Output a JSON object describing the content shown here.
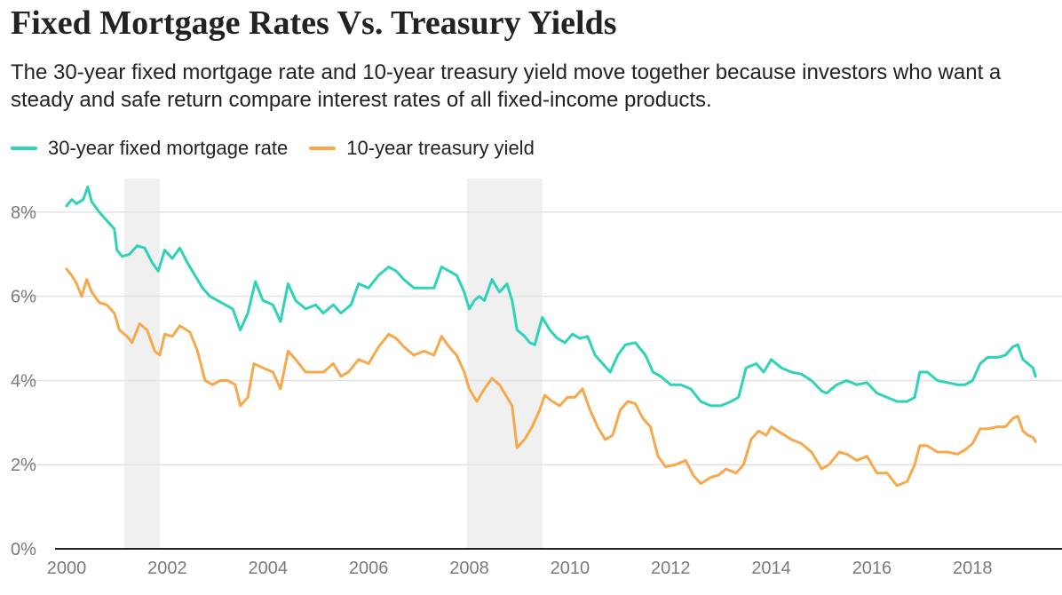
{
  "header": {
    "title": "Fixed Mortgage Rates Vs. Treasury Yields",
    "subtitle": "The 30-year fixed mortgage rate and 10-year treasury yield move together because investors who want a steady and safe return compare interest rates of all fixed-income products."
  },
  "legend": {
    "items": [
      {
        "label": "30-year fixed mortgage rate",
        "color": "#2ed3b7"
      },
      {
        "label": "10-year treasury yield",
        "color": "#f6a84b"
      }
    ]
  },
  "chart_data": {
    "type": "line",
    "title": "Fixed Mortgage Rates Vs. Treasury Yields",
    "xlabel": "",
    "ylabel": "",
    "xlim": [
      2000.0,
      2019.6
    ],
    "ylim": [
      0,
      8.8
    ],
    "x_ticks": [
      2000,
      2002,
      2004,
      2006,
      2008,
      2010,
      2012,
      2014,
      2016,
      2018
    ],
    "y_ticks": [
      0,
      2,
      4,
      6,
      8
    ],
    "y_tick_labels": [
      "0%",
      "2%",
      "4%",
      "6%",
      "8%"
    ],
    "grid": true,
    "legend_position": "top-left",
    "shaded_periods": [
      {
        "start": 2001.15,
        "end": 2001.85
      },
      {
        "start": 2007.95,
        "end": 2009.45
      }
    ],
    "series": [
      {
        "name": "30-year fixed mortgage rate",
        "color": "#2ed3b7",
        "points": [
          [
            2000.0,
            8.15
          ],
          [
            2000.1,
            8.3
          ],
          [
            2000.2,
            8.2
          ],
          [
            2000.33,
            8.3
          ],
          [
            2000.42,
            8.6
          ],
          [
            2000.5,
            8.25
          ],
          [
            2000.65,
            8.0
          ],
          [
            2000.8,
            7.8
          ],
          [
            2000.95,
            7.6
          ],
          [
            2001.0,
            7.1
          ],
          [
            2001.1,
            6.95
          ],
          [
            2001.25,
            7.0
          ],
          [
            2001.4,
            7.2
          ],
          [
            2001.55,
            7.15
          ],
          [
            2001.7,
            6.8
          ],
          [
            2001.82,
            6.6
          ],
          [
            2001.95,
            7.1
          ],
          [
            2002.1,
            6.9
          ],
          [
            2002.25,
            7.15
          ],
          [
            2002.4,
            6.8
          ],
          [
            2002.55,
            6.5
          ],
          [
            2002.7,
            6.2
          ],
          [
            2002.85,
            6.0
          ],
          [
            2003.0,
            5.9
          ],
          [
            2003.15,
            5.8
          ],
          [
            2003.3,
            5.7
          ],
          [
            2003.45,
            5.2
          ],
          [
            2003.6,
            5.6
          ],
          [
            2003.75,
            6.35
          ],
          [
            2003.9,
            5.9
          ],
          [
            2004.1,
            5.8
          ],
          [
            2004.25,
            5.4
          ],
          [
            2004.4,
            6.3
          ],
          [
            2004.55,
            5.9
          ],
          [
            2004.75,
            5.7
          ],
          [
            2004.95,
            5.8
          ],
          [
            2005.1,
            5.6
          ],
          [
            2005.3,
            5.8
          ],
          [
            2005.45,
            5.6
          ],
          [
            2005.65,
            5.8
          ],
          [
            2005.8,
            6.3
          ],
          [
            2006.0,
            6.2
          ],
          [
            2006.2,
            6.5
          ],
          [
            2006.4,
            6.7
          ],
          [
            2006.55,
            6.6
          ],
          [
            2006.7,
            6.4
          ],
          [
            2006.9,
            6.2
          ],
          [
            2007.1,
            6.2
          ],
          [
            2007.3,
            6.2
          ],
          [
            2007.45,
            6.7
          ],
          [
            2007.6,
            6.6
          ],
          [
            2007.75,
            6.5
          ],
          [
            2007.9,
            6.1
          ],
          [
            2008.0,
            5.7
          ],
          [
            2008.1,
            5.9
          ],
          [
            2008.2,
            6.0
          ],
          [
            2008.3,
            5.9
          ],
          [
            2008.45,
            6.4
          ],
          [
            2008.6,
            6.1
          ],
          [
            2008.75,
            6.3
          ],
          [
            2008.85,
            5.9
          ],
          [
            2008.95,
            5.2
          ],
          [
            2009.1,
            5.05
          ],
          [
            2009.2,
            4.9
          ],
          [
            2009.3,
            4.85
          ],
          [
            2009.45,
            5.5
          ],
          [
            2009.6,
            5.2
          ],
          [
            2009.75,
            5.0
          ],
          [
            2009.9,
            4.9
          ],
          [
            2010.05,
            5.1
          ],
          [
            2010.2,
            5.0
          ],
          [
            2010.35,
            5.05
          ],
          [
            2010.5,
            4.6
          ],
          [
            2010.65,
            4.4
          ],
          [
            2010.8,
            4.2
          ],
          [
            2010.95,
            4.6
          ],
          [
            2011.1,
            4.85
          ],
          [
            2011.3,
            4.9
          ],
          [
            2011.5,
            4.6
          ],
          [
            2011.65,
            4.2
          ],
          [
            2011.8,
            4.1
          ],
          [
            2012.0,
            3.9
          ],
          [
            2012.2,
            3.9
          ],
          [
            2012.4,
            3.8
          ],
          [
            2012.6,
            3.5
          ],
          [
            2012.8,
            3.4
          ],
          [
            2013.0,
            3.4
          ],
          [
            2013.2,
            3.5
          ],
          [
            2013.35,
            3.6
          ],
          [
            2013.5,
            4.3
          ],
          [
            2013.7,
            4.4
          ],
          [
            2013.85,
            4.2
          ],
          [
            2014.0,
            4.5
          ],
          [
            2014.2,
            4.3
          ],
          [
            2014.4,
            4.2
          ],
          [
            2014.6,
            4.15
          ],
          [
            2014.8,
            4.0
          ],
          [
            2015.0,
            3.75
          ],
          [
            2015.1,
            3.7
          ],
          [
            2015.3,
            3.9
          ],
          [
            2015.5,
            4.0
          ],
          [
            2015.7,
            3.9
          ],
          [
            2015.9,
            3.95
          ],
          [
            2016.1,
            3.7
          ],
          [
            2016.3,
            3.6
          ],
          [
            2016.5,
            3.5
          ],
          [
            2016.7,
            3.5
          ],
          [
            2016.85,
            3.6
          ],
          [
            2016.95,
            4.2
          ],
          [
            2017.1,
            4.2
          ],
          [
            2017.3,
            4.0
          ],
          [
            2017.5,
            3.95
          ],
          [
            2017.7,
            3.9
          ],
          [
            2017.85,
            3.9
          ],
          [
            2018.0,
            4.0
          ],
          [
            2018.15,
            4.4
          ],
          [
            2018.3,
            4.55
          ],
          [
            2018.5,
            4.55
          ],
          [
            2018.65,
            4.6
          ],
          [
            2018.8,
            4.8
          ],
          [
            2018.9,
            4.85
          ],
          [
            2019.0,
            4.5
          ],
          [
            2019.1,
            4.4
          ],
          [
            2019.2,
            4.3
          ],
          [
            2019.25,
            4.1
          ]
        ]
      },
      {
        "name": "10-year treasury yield",
        "color": "#f6a84b",
        "points": [
          [
            2000.0,
            6.65
          ],
          [
            2000.1,
            6.5
          ],
          [
            2000.2,
            6.3
          ],
          [
            2000.3,
            6.0
          ],
          [
            2000.4,
            6.4
          ],
          [
            2000.5,
            6.1
          ],
          [
            2000.65,
            5.85
          ],
          [
            2000.8,
            5.8
          ],
          [
            2000.95,
            5.6
          ],
          [
            2001.05,
            5.2
          ],
          [
            2001.2,
            5.05
          ],
          [
            2001.3,
            4.9
          ],
          [
            2001.45,
            5.35
          ],
          [
            2001.6,
            5.2
          ],
          [
            2001.75,
            4.7
          ],
          [
            2001.85,
            4.6
          ],
          [
            2001.95,
            5.1
          ],
          [
            2002.1,
            5.05
          ],
          [
            2002.25,
            5.3
          ],
          [
            2002.45,
            5.15
          ],
          [
            2002.6,
            4.7
          ],
          [
            2002.75,
            4.0
          ],
          [
            2002.9,
            3.9
          ],
          [
            2003.05,
            4.0
          ],
          [
            2003.2,
            4.0
          ],
          [
            2003.35,
            3.9
          ],
          [
            2003.45,
            3.4
          ],
          [
            2003.6,
            3.6
          ],
          [
            2003.72,
            4.4
          ],
          [
            2003.9,
            4.3
          ],
          [
            2004.1,
            4.2
          ],
          [
            2004.25,
            3.8
          ],
          [
            2004.4,
            4.7
          ],
          [
            2004.55,
            4.5
          ],
          [
            2004.75,
            4.2
          ],
          [
            2004.95,
            4.2
          ],
          [
            2005.1,
            4.2
          ],
          [
            2005.3,
            4.4
          ],
          [
            2005.45,
            4.1
          ],
          [
            2005.6,
            4.2
          ],
          [
            2005.8,
            4.5
          ],
          [
            2006.0,
            4.4
          ],
          [
            2006.2,
            4.8
          ],
          [
            2006.4,
            5.1
          ],
          [
            2006.55,
            5.0
          ],
          [
            2006.7,
            4.8
          ],
          [
            2006.9,
            4.6
          ],
          [
            2007.1,
            4.7
          ],
          [
            2007.3,
            4.6
          ],
          [
            2007.45,
            5.05
          ],
          [
            2007.6,
            4.8
          ],
          [
            2007.75,
            4.6
          ],
          [
            2007.9,
            4.2
          ],
          [
            2008.0,
            3.8
          ],
          [
            2008.15,
            3.5
          ],
          [
            2008.3,
            3.8
          ],
          [
            2008.45,
            4.05
          ],
          [
            2008.6,
            3.9
          ],
          [
            2008.75,
            3.6
          ],
          [
            2008.85,
            3.4
          ],
          [
            2008.95,
            2.4
          ],
          [
            2009.1,
            2.6
          ],
          [
            2009.25,
            2.9
          ],
          [
            2009.4,
            3.3
          ],
          [
            2009.5,
            3.65
          ],
          [
            2009.65,
            3.5
          ],
          [
            2009.8,
            3.4
          ],
          [
            2009.95,
            3.6
          ],
          [
            2010.1,
            3.6
          ],
          [
            2010.25,
            3.8
          ],
          [
            2010.4,
            3.3
          ],
          [
            2010.55,
            2.9
          ],
          [
            2010.7,
            2.6
          ],
          [
            2010.85,
            2.7
          ],
          [
            2011.0,
            3.3
          ],
          [
            2011.15,
            3.5
          ],
          [
            2011.3,
            3.45
          ],
          [
            2011.45,
            3.1
          ],
          [
            2011.6,
            2.9
          ],
          [
            2011.75,
            2.2
          ],
          [
            2011.9,
            1.95
          ],
          [
            2012.1,
            2.0
          ],
          [
            2012.3,
            2.1
          ],
          [
            2012.45,
            1.75
          ],
          [
            2012.6,
            1.55
          ],
          [
            2012.8,
            1.7
          ],
          [
            2012.95,
            1.75
          ],
          [
            2013.1,
            1.9
          ],
          [
            2013.3,
            1.8
          ],
          [
            2013.45,
            2.0
          ],
          [
            2013.6,
            2.6
          ],
          [
            2013.75,
            2.8
          ],
          [
            2013.9,
            2.7
          ],
          [
            2014.0,
            2.9
          ],
          [
            2014.2,
            2.75
          ],
          [
            2014.4,
            2.6
          ],
          [
            2014.6,
            2.5
          ],
          [
            2014.8,
            2.3
          ],
          [
            2015.0,
            1.9
          ],
          [
            2015.15,
            2.0
          ],
          [
            2015.35,
            2.3
          ],
          [
            2015.5,
            2.25
          ],
          [
            2015.7,
            2.1
          ],
          [
            2015.9,
            2.2
          ],
          [
            2016.1,
            1.8
          ],
          [
            2016.3,
            1.8
          ],
          [
            2016.5,
            1.5
          ],
          [
            2016.7,
            1.6
          ],
          [
            2016.85,
            2.0
          ],
          [
            2016.95,
            2.45
          ],
          [
            2017.1,
            2.45
          ],
          [
            2017.3,
            2.3
          ],
          [
            2017.5,
            2.3
          ],
          [
            2017.7,
            2.25
          ],
          [
            2017.85,
            2.35
          ],
          [
            2018.0,
            2.5
          ],
          [
            2018.15,
            2.85
          ],
          [
            2018.3,
            2.85
          ],
          [
            2018.5,
            2.9
          ],
          [
            2018.65,
            2.9
          ],
          [
            2018.8,
            3.1
          ],
          [
            2018.9,
            3.15
          ],
          [
            2019.0,
            2.8
          ],
          [
            2019.1,
            2.7
          ],
          [
            2019.2,
            2.65
          ],
          [
            2019.25,
            2.55
          ]
        ]
      }
    ]
  }
}
